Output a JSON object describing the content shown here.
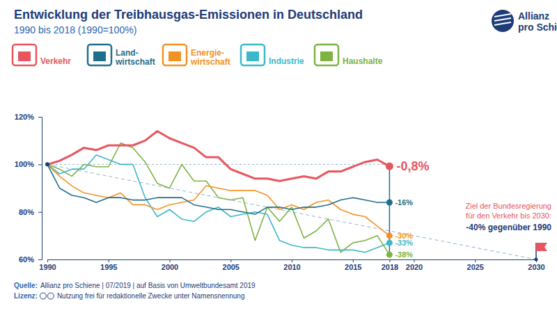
{
  "chart_data": {
    "type": "line",
    "title": "Entwicklung der Treibhausgas-Emissionen in Deutschland",
    "subtitle": "1990 bis 2018 (1990=100%)",
    "logo": "Allianz\npro Schiene",
    "source": "Quelle: Allianz pro Schiene | 07/2019 | auf Basis von Umweltbundesamt 2019",
    "license": "Lizenz: Nutzung frei für redaktionelle Zwecke unter Namensnennung",
    "x": [
      1990,
      1991,
      1992,
      1993,
      1994,
      1995,
      1996,
      1997,
      1998,
      1999,
      2000,
      2001,
      2002,
      2003,
      2004,
      2005,
      2006,
      2007,
      2008,
      2009,
      2010,
      2011,
      2012,
      2013,
      2014,
      2015,
      2016,
      2017,
      2018
    ],
    "series": [
      {
        "name": "Verkehr",
        "color": "#e8555e",
        "change": -0.8,
        "change_label": "-0,8%",
        "values": [
          100,
          101.5,
          104,
          107,
          106,
          108,
          108,
          108,
          110,
          114,
          111,
          109,
          107,
          103,
          103,
          98,
          96,
          94,
          94,
          93,
          94,
          95,
          94,
          97,
          97,
          99,
          101,
          102,
          99.2
        ]
      },
      {
        "name": "Land-\nwirtschaft",
        "color": "#1f6e8c",
        "change": -16,
        "change_label": "-16%",
        "values": [
          100,
          90,
          87,
          86,
          84,
          86,
          86,
          85,
          85,
          86,
          86,
          86,
          83,
          82,
          81,
          81,
          80,
          79,
          82,
          82,
          81,
          82,
          82,
          83,
          85,
          86,
          85,
          84,
          84
        ]
      },
      {
        "name": "Energie-\nwirtschaft",
        "color": "#f29222",
        "change": -30,
        "change_label": "-30%",
        "values": [
          100,
          95,
          91,
          88,
          87,
          86,
          88,
          83,
          83,
          81,
          83,
          84,
          85,
          91,
          90,
          89,
          89,
          89,
          87,
          81,
          83,
          81,
          84,
          85,
          81,
          79,
          78,
          74,
          70
        ]
      },
      {
        "name": "Industrie",
        "color": "#3bb8c9",
        "change": -33,
        "change_label": "-33%",
        "values": [
          100,
          96,
          98,
          98,
          104,
          102,
          100,
          100,
          86,
          78,
          81,
          77,
          76,
          80,
          82,
          78,
          79,
          80,
          79,
          68,
          66,
          65,
          65,
          64,
          64,
          64,
          63,
          65,
          67
        ]
      },
      {
        "name": "Haushalte",
        "color": "#7cb342",
        "change": -38,
        "change_label": "-38%",
        "values": [
          100,
          98,
          95,
          100,
          99,
          99,
          109,
          107,
          101,
          92,
          90,
          100,
          93,
          93,
          86,
          85,
          86,
          68,
          82,
          76,
          82,
          69,
          72,
          77,
          63,
          67,
          68,
          70,
          62
        ]
      }
    ],
    "baseline": {
      "y": 100,
      "x": [
        1990,
        2018
      ]
    },
    "target": {
      "x": [
        1990,
        2030
      ],
      "values": [
        100,
        60
      ],
      "label_lines": [
        "Ziel der Bundesregierung",
        "für den Verkehr bis 2030:",
        "-40% gegenüber 1990"
      ]
    },
    "xlim": [
      1990,
      2030
    ],
    "xticks": [
      1990,
      1995,
      2000,
      2005,
      2010,
      2015,
      2018,
      2020,
      2025,
      2030
    ],
    "ylim": [
      60,
      120
    ],
    "yticks": [
      {
        "value": 60,
        "label": "60%"
      },
      {
        "value": 80,
        "label": "80%"
      },
      {
        "value": 100,
        "label": "100%"
      },
      {
        "value": 120,
        "label": "120%"
      }
    ],
    "grid": false,
    "legend": "top-left",
    "data_labels": true
  }
}
